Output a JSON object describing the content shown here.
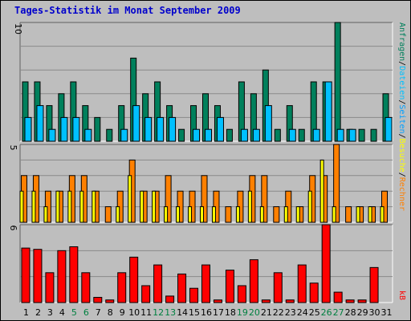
{
  "title": "Tages-Statistik im Monat September 2009",
  "colors": {
    "anfragen": "#00805c",
    "dateien": "#00c0ff",
    "seiten": "#00a0ff",
    "besuche": "#ffff00",
    "rechner": "#ff8000",
    "kb": "#ff0000",
    "weekday": "#000000",
    "weekend": "#008040"
  },
  "chart_data": [
    {
      "type": "bar",
      "panel": "top",
      "y_max": 10,
      "y_max_label": "10",
      "categories": [
        "1",
        "2",
        "3",
        "4",
        "5",
        "6",
        "7",
        "8",
        "9",
        "10",
        "11",
        "12",
        "13",
        "14",
        "15",
        "16",
        "17",
        "18",
        "19",
        "20",
        "21",
        "22",
        "23",
        "24",
        "25",
        "26",
        "27",
        "28",
        "29",
        "30",
        "31"
      ],
      "weekend_days": [
        5,
        6,
        12,
        13,
        19,
        20,
        26,
        27
      ],
      "side_labels": [
        "Anfragen",
        "Dateien",
        "Seiten"
      ],
      "series": [
        {
          "name": "Anfragen",
          "values": [
            5,
            5,
            3,
            4,
            5,
            3,
            2,
            1,
            3,
            7,
            4,
            5,
            3,
            1,
            3,
            4,
            3,
            1,
            5,
            4,
            6,
            1,
            3,
            1,
            5,
            5,
            10,
            1,
            1,
            1,
            4
          ]
        },
        {
          "name": "Dateien",
          "values": [
            2,
            3,
            1,
            2,
            2,
            1,
            0,
            0,
            1,
            3,
            2,
            2,
            2,
            0,
            1,
            1,
            2,
            0,
            1,
            1,
            3,
            0,
            1,
            0,
            1,
            5,
            1,
            1,
            0,
            0,
            2
          ]
        }
      ]
    },
    {
      "type": "bar",
      "panel": "middle",
      "y_max": 5,
      "y_max_label": "5",
      "side_labels": [
        "Rechner",
        "Besuche"
      ],
      "series": [
        {
          "name": "Besuche",
          "values": [
            2,
            2,
            1,
            2,
            2,
            2,
            2,
            0,
            1,
            3,
            2,
            2,
            1,
            1,
            1,
            1,
            1,
            0,
            1,
            2,
            1,
            0,
            1,
            1,
            2,
            4,
            1,
            0,
            1,
            1,
            1
          ]
        },
        {
          "name": "Rechner",
          "values": [
            3,
            3,
            2,
            2,
            3,
            3,
            2,
            1,
            2,
            4,
            2,
            2,
            3,
            2,
            2,
            3,
            2,
            1,
            2,
            3,
            3,
            1,
            2,
            1,
            3,
            3,
            5,
            1,
            1,
            1,
            2
          ]
        }
      ]
    },
    {
      "type": "bar",
      "panel": "bottom",
      "y_max": 6,
      "y_max_label": "6",
      "side_labels": [
        "kB"
      ],
      "series": [
        {
          "name": "kB",
          "values": [
            4.2,
            4.1,
            2.3,
            4.0,
            4.3,
            2.3,
            0.4,
            0.2,
            2.3,
            3.5,
            1.3,
            2.9,
            0.5,
            2.2,
            1.1,
            2.9,
            0.2,
            2.5,
            1.3,
            3.3,
            0.2,
            2.3,
            0.2,
            2.9,
            1.5,
            6.0,
            0.8,
            0.2,
            0.2,
            2.7,
            0
          ]
        }
      ]
    }
  ]
}
